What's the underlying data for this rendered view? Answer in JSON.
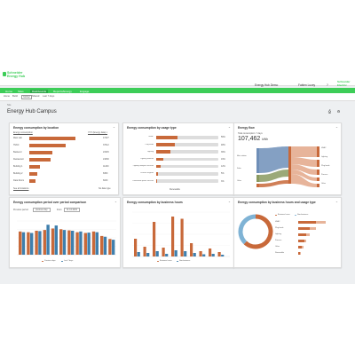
{
  "app": {
    "brand_line1": "Schneider",
    "brand_line2": "Energy Hub"
  },
  "header": {
    "site_selector": "Energy Hub Demo",
    "user": "Fabien Lucey",
    "help": "?",
    "company": "Schneider Electric"
  },
  "nav": {
    "items": [
      "Home",
      "Sites",
      "Dashboards",
      "Reports/Energy",
      "Engage"
    ],
    "active_index": 2
  },
  "subnav": {
    "items": [
      "Home",
      "Build",
      "Global",
      "Shared",
      "Last 7 days"
    ]
  },
  "breadcrumb": "Site",
  "page": {
    "title": "Energy Hub Campus",
    "print_icon": "print-icon",
    "settings_icon": "settings-icon"
  },
  "colors": {
    "green": "#3dcd58",
    "orange": "#c8693a",
    "blue": "#3f7fad",
    "grey": "#dddddd",
    "sankey_blue": "#6f8fb8",
    "sankey_olive": "#8a9a60"
  },
  "cards": {
    "location": {
      "title": "Energy consumption by location",
      "filter1": "Energy consumption",
      "filter2": "YOY (Energy data) v",
      "footer": "See all locations",
      "footer_right": "No data type",
      "rows": [
        {
          "label": "Main Lab",
          "value": "47427"
        },
        {
          "label": "HVAC",
          "value": "37612"
        },
        {
          "label": "Backend",
          "value": "23445"
        },
        {
          "label": "Restaurant",
          "value": "21800"
        },
        {
          "label": "Building 1",
          "value": "11200"
        },
        {
          "label": "Building 2",
          "value": "8450"
        },
        {
          "label": "Data Room",
          "value": "6030"
        }
      ]
    },
    "usage": {
      "title": "Energy consumption by usage type",
      "footer": "Renewable",
      "rows": [
        {
          "label": "HVAC",
          "pct": 56
        },
        {
          "label": "Plug loads",
          "pct": 48
        },
        {
          "label": "Lighting",
          "pct": 36
        },
        {
          "label": "Lighting external",
          "pct": 19
        },
        {
          "label": "Lighting analytics services",
          "pct": 12
        },
        {
          "label": "Process engines",
          "pct": 5
        },
        {
          "label": "Renewable power sources",
          "pct": 3
        }
      ]
    },
    "flow": {
      "title": "Energy flow",
      "subtitle": "Total consumption: 7 days",
      "total": "107,462",
      "unit": "kWh",
      "sources": [
        "Main station",
        "Solar",
        "Other"
      ],
      "sinks": [
        "HVAC",
        "Lighting",
        "Plug loads",
        "Process",
        "Other"
      ]
    },
    "period": {
      "title": "Energy consumption period over period comparison",
      "filter_label": "Previous period",
      "filter_value": "previous day",
      "from_label": "From",
      "from_value": "11-12-2021",
      "legend": [
        "Previous days",
        "Last 7 days"
      ]
    },
    "business": {
      "title": "Energy consumption by business hours",
      "legend": [
        "Business hours",
        "Non-business"
      ]
    },
    "bhusage": {
      "title": "Energy consumption by business hours and usage type",
      "legend": [
        "Business hours",
        "Non-business"
      ],
      "rows": [
        "HVAC",
        "Plug loads",
        "Lighting",
        "Process",
        "Other",
        "Renewable"
      ]
    }
  },
  "chart_data": [
    {
      "type": "bar",
      "title": "Energy consumption by location",
      "categories": [
        "Main Lab",
        "HVAC",
        "Backend",
        "Restaurant",
        "Building 1",
        "Building 2",
        "Data Room"
      ],
      "values": [
        47427,
        37612,
        23445,
        21800,
        11200,
        8450,
        6030
      ]
    },
    {
      "type": "bar",
      "title": "Energy consumption by usage type",
      "categories": [
        "HVAC",
        "Plug loads",
        "Lighting",
        "Lighting external",
        "Lighting analytics services",
        "Process engines",
        "Renewable power sources"
      ],
      "values": [
        56,
        48,
        36,
        19,
        12,
        5,
        3
      ]
    },
    {
      "type": "bar",
      "title": "Energy consumption period over period comparison",
      "series": [
        {
          "name": "Previous days",
          "values": [
            62,
            60,
            64,
            66,
            70,
            68,
            65,
            60,
            58,
            62,
            50,
            42
          ]
        },
        {
          "name": "Last 7 days",
          "values": [
            60,
            58,
            63,
            80,
            78,
            66,
            64,
            62,
            59,
            60,
            48,
            40
          ]
        }
      ]
    },
    {
      "type": "bar",
      "title": "Energy consumption by business hours",
      "series": [
        {
          "name": "Business hours",
          "values": [
            40,
            22,
            78,
            20,
            90,
            85,
            30,
            12,
            18,
            10
          ]
        },
        {
          "name": "Non-business",
          "values": [
            10,
            8,
            12,
            6,
            14,
            12,
            8,
            5,
            6,
            4
          ]
        }
      ]
    },
    {
      "type": "pie",
      "title": "Energy consumption by business hours and usage type",
      "categories": [
        "Business hours",
        "Non-business"
      ],
      "values": [
        62,
        38
      ]
    },
    {
      "type": "bar",
      "title": "Energy consumption by business hours and usage type (rows)",
      "categories": [
        "HVAC",
        "Plug loads",
        "Lighting",
        "Process",
        "Other",
        "Renewable"
      ],
      "series": [
        {
          "name": "Business hours",
          "values": [
            90,
            60,
            40,
            30,
            20,
            10
          ]
        },
        {
          "name": "Non-business",
          "values": [
            50,
            30,
            20,
            12,
            8,
            4
          ]
        }
      ]
    }
  ]
}
